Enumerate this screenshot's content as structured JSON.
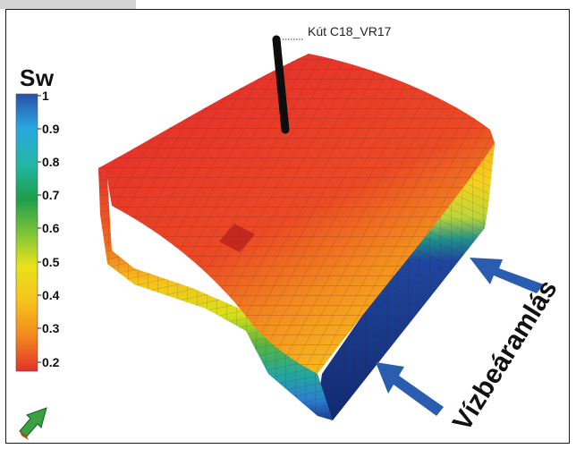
{
  "colorbar": {
    "title": "Sw",
    "ticks": [
      "1",
      "0.9",
      "0.8",
      "0.7",
      "0.6",
      "0.5",
      "0.4",
      "0.3",
      "0.2"
    ],
    "range": [
      0.2,
      1.0
    ],
    "colors": [
      "#2b4fa8",
      "#2aa6e0",
      "#22b7a8",
      "#1e9e4a",
      "#7cc43a",
      "#e8e21a",
      "#f6c21c",
      "#f28a1e",
      "#e2322a"
    ]
  },
  "well": {
    "label": "Kút C18_VR17"
  },
  "inflow": {
    "label": "Vízbeáramlás",
    "arrow_color": "#2a5db0"
  },
  "model": {
    "top_color_near": "#e6332a",
    "top_color_far": "#f7c81e",
    "base_color": "#14307e"
  },
  "orientation_icon": "orientation-arrow-icon"
}
